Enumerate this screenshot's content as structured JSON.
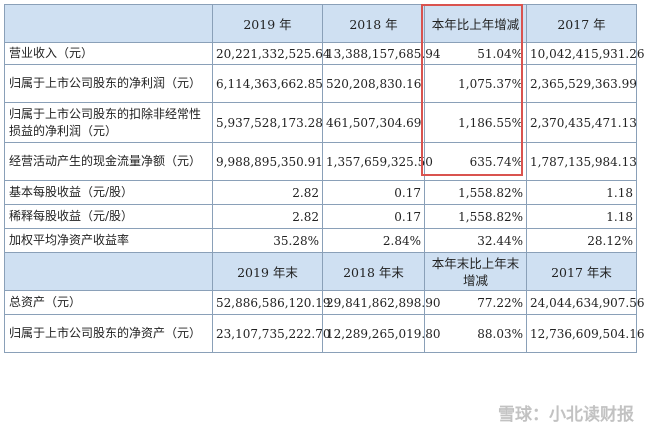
{
  "header1": [
    "",
    "2019 年",
    "2018 年",
    "本年比上年增减",
    "2017 年"
  ],
  "rows1": [
    [
      "营业收入（元）",
      "20,221,332,525.64",
      "13,388,157,685.94",
      "51.04%",
      "10,042,415,931.26"
    ],
    [
      "归属于上市公司股东的净利润（元）",
      "6,114,363,662.85",
      "520,208,830.16",
      "1,075.37%",
      "2,365,529,363.99"
    ],
    [
      "归属于上市公司股东的扣除非经常性损益的净利润（元）",
      "5,937,528,173.28",
      "461,507,304.69",
      "1,186.55%",
      "2,370,435,471.13"
    ],
    [
      "经营活动产生的现金流量净额（元）",
      "9,988,895,350.91",
      "1,357,659,325.50",
      "635.74%",
      "1,787,135,984.13"
    ],
    [
      "基本每股收益（元/股）",
      "2.82",
      "0.17",
      "1,558.82%",
      "1.18"
    ],
    [
      "稀释每股收益（元/股）",
      "2.82",
      "0.17",
      "1,558.82%",
      "1.18"
    ],
    [
      "加权平均净资产收益率",
      "35.28%",
      "2.84%",
      "32.44%",
      "28.12%"
    ]
  ],
  "header2": [
    "",
    "2019 年末",
    "2018 年末",
    "本年末比上年末增减",
    "2017 年末"
  ],
  "rows2": [
    [
      "总资产（元）",
      "52,886,586,120.19",
      "29,841,862,898.90",
      "77.22%",
      "24,044,634,907.56"
    ],
    [
      "归属于上市公司股东的净资产（元）",
      "23,107,735,222.70",
      "12,289,265,019.80",
      "88.03%",
      "12,736,609,504.16"
    ]
  ],
  "watermark": "雪球：小北读财报",
  "colors": {
    "header_bg": "#cfe0f2",
    "highlight_box": "#d9534f",
    "border": "#8aa0b8"
  }
}
